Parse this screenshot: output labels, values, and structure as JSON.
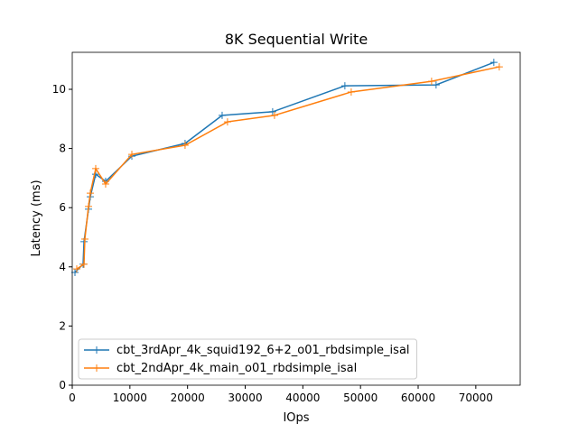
{
  "chart_data": {
    "type": "line",
    "title": "8K  Sequential Write",
    "xlabel": "IOps",
    "ylabel": "Latency (ms)",
    "xlim": [
      0,
      77700
    ],
    "ylim": [
      0,
      11.25
    ],
    "xticks": [
      0,
      10000,
      20000,
      30000,
      40000,
      50000,
      60000,
      70000
    ],
    "yticks": [
      0,
      2,
      4,
      6,
      8,
      10
    ],
    "legend": "lower left",
    "marker": "+",
    "series": [
      {
        "name": "cbt_3rdApr_4k_squid192_6+2_o01_rbdsimple_isal",
        "color": "#1f77b4",
        "x": [
          470,
          1880,
          2040,
          2820,
          3130,
          4070,
          5790,
          10340,
          19570,
          26000,
          34760,
          47290,
          63110,
          73130
        ],
        "values": [
          3.81,
          4.09,
          4.85,
          5.95,
          6.37,
          7.13,
          6.89,
          7.74,
          8.17,
          9.12,
          9.24,
          10.12,
          10.15,
          10.91
        ]
      },
      {
        "name": "cbt_2ndApr_4k_main_o01_rbdsimple_isal",
        "color": "#ff7f0e",
        "x": [
          780,
          2040,
          2190,
          2820,
          3130,
          4070,
          5790,
          10340,
          19570,
          26930,
          35080,
          48390,
          62330,
          74070
        ],
        "values": [
          3.93,
          4.09,
          4.94,
          6.04,
          6.49,
          7.32,
          6.8,
          7.8,
          8.11,
          8.9,
          9.12,
          9.91,
          10.27,
          10.76
        ]
      }
    ]
  }
}
